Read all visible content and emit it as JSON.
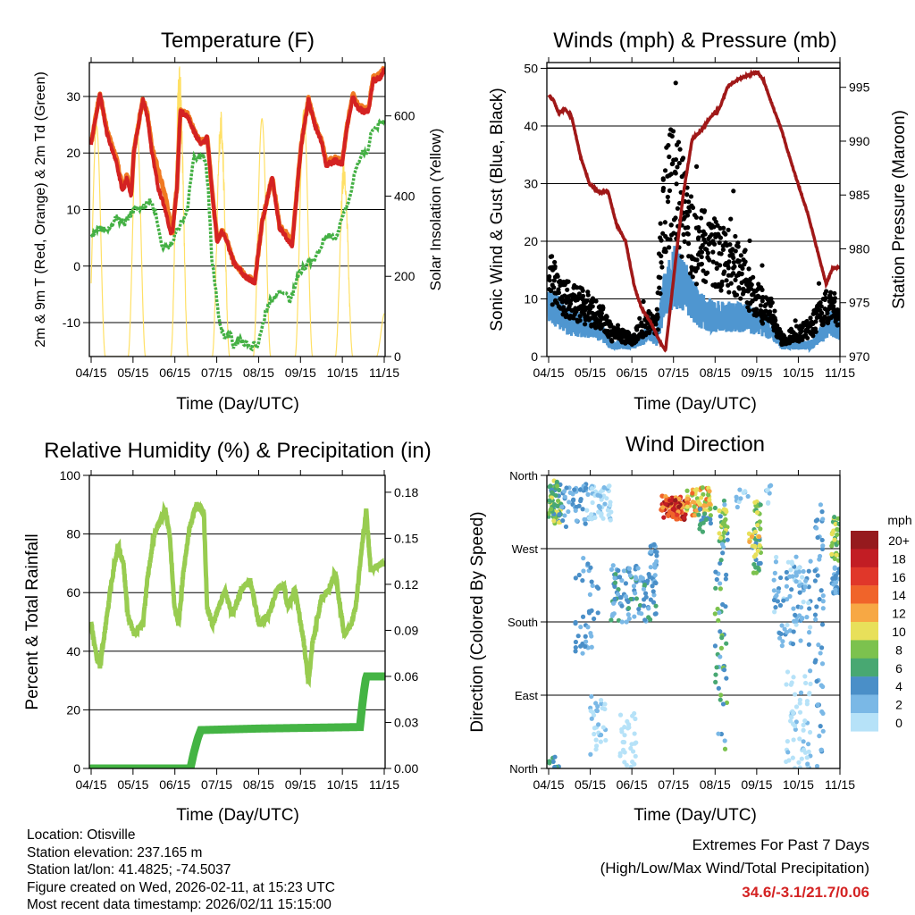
{
  "chart_data": [
    {
      "type": "line",
      "title": "Temperature (F)",
      "xlabel": "Time (Day/UTC)",
      "ylabel": "2m & 9m T (Red, Orange) & 2m Td (Green)",
      "ylabel_right": "Solar Insolation (Yellow)",
      "xlim": [
        0,
        7
      ],
      "x_tick_labels": [
        "04/15",
        "05/15",
        "06/15",
        "07/15",
        "08/15",
        "09/15",
        "10/15",
        "11/15"
      ],
      "ylim": [
        -16,
        36
      ],
      "y_ticks": [
        -10,
        0,
        10,
        20,
        30
      ],
      "y_tick_labels": [
        "-10",
        "0",
        "10",
        "20",
        "30"
      ],
      "ylim_right": [
        0,
        733
      ],
      "y_right_ticks": [
        0,
        200,
        400,
        600
      ],
      "y_right_tick_labels": [
        "0",
        "200",
        "400",
        "600"
      ],
      "grid": true,
      "series": [
        {
          "name": "9m T",
          "color": "#f07a22",
          "x": [
            0,
            0.21,
            0.38,
            0.6,
            0.75,
            0.85,
            0.96,
            1.02,
            1.2,
            1.24,
            1.34,
            1.45,
            1.6,
            1.77,
            1.88,
            1.94,
            2.05,
            2.13,
            2.3,
            2.48,
            2.62,
            2.73,
            2.77,
            2.9,
            3.01,
            3.12,
            3.2,
            3.41,
            3.69,
            3.91,
            4.08,
            4.27,
            4.33,
            4.5,
            4.65,
            4.8,
            5.01,
            5.19,
            5.34,
            5.51,
            5.61,
            5.83,
            6.0,
            6.1,
            6.25,
            6.36,
            6.51,
            6.62,
            6.74,
            6.89,
            7.0
          ],
          "y": [
            21.8,
            30.6,
            24.0,
            19.2,
            14.0,
            16.0,
            12.8,
            20.4,
            28.2,
            29.5,
            27.0,
            21.0,
            17.0,
            12.5,
            8.0,
            6.2,
            14.0,
            27.4,
            26.8,
            23.6,
            22.0,
            22.3,
            23.2,
            12.5,
            4.6,
            6.2,
            5.4,
            0.6,
            -1.8,
            -2.7,
            7.8,
            14.0,
            15.6,
            7.0,
            5.8,
            4.0,
            21.2,
            29.5,
            25.3,
            22.2,
            18.5,
            19.0,
            18.5,
            24.4,
            30.3,
            28.6,
            27.8,
            27.6,
            33.4,
            33.8,
            35.0
          ]
        },
        {
          "name": "2m T",
          "color": "#d42222",
          "x": [
            0,
            0.21,
            0.38,
            0.6,
            0.75,
            0.85,
            0.96,
            1.02,
            1.2,
            1.24,
            1.34,
            1.45,
            1.6,
            1.77,
            1.88,
            1.94,
            2.05,
            2.13,
            2.3,
            2.48,
            2.62,
            2.73,
            2.77,
            2.9,
            3.01,
            3.12,
            3.2,
            3.41,
            3.69,
            3.91,
            4.08,
            4.27,
            4.33,
            4.5,
            4.65,
            4.8,
            5.01,
            5.19,
            5.34,
            5.51,
            5.61,
            5.83,
            6.0,
            6.1,
            6.25,
            6.36,
            6.51,
            6.62,
            6.74,
            6.89,
            7.0
          ],
          "y": [
            21.5,
            30.5,
            23.4,
            18.6,
            13.1,
            15.5,
            12.3,
            20.2,
            28.1,
            29.4,
            26.5,
            20.2,
            13.9,
            10.0,
            6.0,
            5.7,
            13.9,
            27.3,
            26.5,
            23.4,
            21.8,
            22.1,
            23.1,
            12.3,
            4.4,
            6.0,
            5.2,
            0.5,
            -1.9,
            -2.8,
            7.6,
            13.9,
            15.5,
            6.8,
            5.2,
            3.6,
            21.0,
            29.4,
            25.0,
            21.8,
            17.9,
            18.6,
            18.2,
            24.2,
            30.0,
            28.1,
            27.3,
            27.3,
            32.9,
            33.2,
            34.6
          ]
        },
        {
          "name": "2m Td",
          "color": "#44b044",
          "x": [
            0,
            0.17,
            0.38,
            0.6,
            0.81,
            1.02,
            1.24,
            1.41,
            1.56,
            1.71,
            1.88,
            2.09,
            2.3,
            2.45,
            2.62,
            2.73,
            2.8,
            2.88,
            2.99,
            3.07,
            3.2,
            3.33,
            3.41,
            3.54,
            3.76,
            3.97,
            4.05,
            4.23,
            4.44,
            4.61,
            4.76,
            4.97,
            5.19,
            5.4,
            5.61,
            5.83,
            5.93,
            6.15,
            6.32,
            6.47,
            6.57,
            6.68,
            6.89,
            7.0
          ],
          "y": [
            5.2,
            6.8,
            6.3,
            8.4,
            7.6,
            10,
            10.4,
            11.5,
            9,
            2.8,
            3.6,
            6.8,
            10,
            19.4,
            19.4,
            19.2,
            13.1,
            1.3,
            -5,
            -10.6,
            -12.6,
            -12.3,
            -14.2,
            -13,
            -14.2,
            -14,
            -11.4,
            -6.6,
            -5.1,
            -4.3,
            -6.3,
            -1.1,
            0.5,
            2.1,
            5.2,
            5.2,
            6.8,
            11.5,
            17,
            20.2,
            19.4,
            23.4,
            25,
            26.2
          ]
        },
        {
          "name": "Solar Insolation",
          "color": "#ffe066",
          "axis": "right",
          "peak_days": [
            0.13,
            1.09,
            2.11,
            3.1,
            4.08,
            5.08,
            6.04,
            7.02
          ],
          "peak_values": [
            575,
            580,
            730,
            613,
            593,
            615,
            498,
            110
          ]
        }
      ]
    },
    {
      "type": "scatter",
      "title": "Winds (mph) & Pressure (mb)",
      "xlabel": "Time (Day/UTC)",
      "ylabel": "Sonic Wind & Gust (Blue, Black)",
      "ylabel_right": "Station Pressure (Maroon)",
      "xlim": [
        0,
        7
      ],
      "x_tick_labels": [
        "04/15",
        "05/15",
        "06/15",
        "07/15",
        "08/15",
        "09/15",
        "10/15",
        "11/15"
      ],
      "ylim": [
        0,
        51
      ],
      "y_ticks": [
        0,
        10,
        20,
        30,
        40,
        50
      ],
      "y_tick_labels": [
        "0",
        "10",
        "20",
        "30",
        "40",
        "50"
      ],
      "ylim_right": [
        970,
        997.3
      ],
      "y_right_ticks": [
        970,
        975,
        980,
        985,
        990,
        995
      ],
      "y_right_tick_labels": [
        "970",
        "975",
        "980",
        "985",
        "990",
        "995"
      ],
      "grid": true,
      "series": [
        {
          "name": "Sonic Wind",
          "color": "#4f96d0",
          "x": [
            0,
            0.5,
            1.0,
            1.3,
            1.5,
            2.0,
            2.4,
            2.6,
            2.75,
            3.0,
            3.3,
            3.6,
            4.0,
            4.5,
            5.0,
            5.3,
            5.6,
            6.0,
            6.3,
            6.6,
            6.8,
            7.0
          ],
          "y": [
            9,
            6,
            5,
            4,
            2,
            2,
            4,
            3,
            10,
            14,
            12,
            8,
            7,
            7,
            6,
            5,
            2,
            2,
            2,
            4,
            6,
            4
          ]
        },
        {
          "name": "Gust",
          "color": "#000000",
          "x": [
            0,
            0.2,
            0.5,
            1.0,
            1.3,
            1.5,
            2.0,
            2.4,
            2.6,
            2.75,
            3.0,
            3.2,
            3.5,
            3.8,
            4.2,
            4.6,
            5.0,
            5.4,
            5.6,
            6.0,
            6.3,
            6.6,
            6.8,
            7.0
          ],
          "y": [
            15,
            11,
            10,
            8,
            7,
            4,
            3,
            6,
            5,
            26,
            31,
            26,
            19,
            19,
            17,
            15,
            10,
            7,
            3,
            4,
            5,
            8,
            9,
            6
          ]
        },
        {
          "name": "Station Pressure",
          "color": "#a01818",
          "axis": "right",
          "x": [
            0,
            0.13,
            0.24,
            0.39,
            0.56,
            0.77,
            0.99,
            1.24,
            1.42,
            1.63,
            1.85,
            2.06,
            2.23,
            2.45,
            2.7,
            2.81,
            3.03,
            3.24,
            3.45,
            3.67,
            3.88,
            4.1,
            4.31,
            4.53,
            4.85,
            5.02,
            5.17,
            5.32,
            5.6,
            5.82,
            6.03,
            6.24,
            6.46,
            6.67,
            6.82,
            7.0
          ],
          "y": [
            994.3,
            993.7,
            992.6,
            993,
            992.2,
            988.5,
            986,
            985.2,
            985.4,
            982.3,
            980.7,
            976.5,
            974.5,
            973.2,
            971.2,
            970.6,
            978.2,
            985.2,
            990.2,
            991,
            992.2,
            993,
            995.1,
            995.7,
            996.2,
            996.4,
            995.6,
            993.9,
            991,
            988.1,
            985.6,
            983.1,
            979.8,
            976.7,
            978.2,
            978.3
          ]
        }
      ]
    },
    {
      "type": "line",
      "title": "Relative Humidity (%) & Precipitation (in)",
      "xlabel": "Time (Day/UTC)",
      "ylabel": "Percent & Total Rainfall",
      "xlim": [
        0,
        7
      ],
      "x_tick_labels": [
        "04/15",
        "05/15",
        "06/15",
        "07/15",
        "08/15",
        "09/15",
        "10/15",
        "11/15"
      ],
      "ylim": [
        0,
        100
      ],
      "y_ticks": [
        0,
        20,
        40,
        60,
        80,
        100
      ],
      "y_tick_labels": [
        "0",
        "20",
        "40",
        "60",
        "80",
        "100"
      ],
      "ylim_right": [
        0,
        0.191
      ],
      "y_right_ticks": [
        0,
        0.03,
        0.06,
        0.09,
        0.12,
        0.15,
        0.18
      ],
      "y_right_tick_labels": [
        "0.00",
        "0.03",
        "0.06",
        "0.09",
        "0.12",
        "0.15",
        "0.18"
      ],
      "grid": true,
      "series": [
        {
          "name": "Relative Humidity",
          "color": "#98cc50",
          "x": [
            0,
            0.13,
            0.21,
            0.34,
            0.49,
            0.64,
            0.77,
            0.88,
            1.02,
            1.24,
            1.34,
            1.49,
            1.66,
            1.77,
            1.88,
            1.99,
            2.09,
            2.2,
            2.35,
            2.52,
            2.69,
            2.77,
            2.9,
            3.05,
            3.2,
            3.37,
            3.58,
            3.8,
            4.01,
            4.23,
            4.44,
            4.61,
            4.69,
            4.87,
            5.08,
            5.19,
            5.29,
            5.5,
            5.68,
            5.83,
            6.04,
            6.21,
            6.32,
            6.47,
            6.57,
            6.68,
            6.79,
            7.0
          ],
          "y": [
            49.4,
            38,
            35,
            48,
            64,
            76,
            70,
            52,
            46,
            49,
            64,
            79,
            85,
            88,
            79,
            55,
            49,
            67,
            82,
            90,
            88,
            55,
            49,
            55,
            61,
            52,
            61,
            64,
            49,
            52,
            61,
            62.5,
            55,
            61,
            43,
            29,
            43,
            58,
            61,
            67,
            46,
            49,
            55,
            76,
            88,
            67,
            69,
            70
          ]
        },
        {
          "name": "Total Precipitation",
          "color": "#44b444",
          "axis": "right",
          "x": [
            0,
            2.37,
            2.45,
            2.55,
            2.62,
            4.0,
            6.42,
            6.47,
            6.52,
            6.57,
            7.0
          ],
          "y": [
            0,
            0,
            0.01,
            0.02,
            0.025,
            0.026,
            0.027,
            0.04,
            0.051,
            0.06,
            0.06
          ]
        }
      ]
    },
    {
      "type": "scatter",
      "title": "Wind Direction",
      "xlabel": "Time (Day/UTC)",
      "ylabel": "Direction (Colored By Speed)",
      "xlim": [
        0,
        7
      ],
      "x_tick_labels": [
        "04/15",
        "05/15",
        "06/15",
        "07/15",
        "08/15",
        "09/15",
        "10/15",
        "11/15"
      ],
      "ylim": [
        0,
        360
      ],
      "y_ticks": [
        0,
        90,
        180,
        270,
        360
      ],
      "y_tick_labels": [
        "North",
        "East",
        "South",
        "West",
        "North"
      ],
      "grid": true,
      "legend": {
        "title": "mph",
        "placement": "right",
        "labels": [
          "20+",
          "18",
          "16",
          "14",
          "12",
          "10",
          "8",
          "6",
          "4",
          "2",
          "0"
        ],
        "colors": [
          "#961a1e",
          "#c21d24",
          "#e0372a",
          "#f0642a",
          "#f7a844",
          "#e8e05a",
          "#7cc24e",
          "#48a872",
          "#4a8fc8",
          "#7ab8e6",
          "#b6e2f8"
        ]
      },
      "point_clusters_note": "day_min, day_max, deg_min, deg_max, speed_min, speed_max, count",
      "point_clusters": [
        [
          0.0,
          0.3,
          300,
          355,
          5,
          11,
          70
        ],
        [
          0.3,
          0.9,
          295,
          350,
          2,
          6,
          45
        ],
        [
          0.9,
          1.5,
          305,
          350,
          0,
          3,
          55
        ],
        [
          0.6,
          1.2,
          140,
          260,
          2,
          6,
          40
        ],
        [
          1.0,
          1.4,
          10,
          90,
          0,
          3,
          30
        ],
        [
          0.0,
          0.3,
          0,
          15,
          4,
          8,
          8
        ],
        [
          1.5,
          2.6,
          180,
          250,
          2,
          7,
          110
        ],
        [
          1.7,
          2.1,
          0,
          70,
          0,
          2,
          30
        ],
        [
          2.4,
          2.6,
          240,
          280,
          3,
          5,
          15
        ],
        [
          2.7,
          3.3,
          305,
          335,
          12,
          21,
          110
        ],
        [
          3.3,
          3.9,
          310,
          345,
          8,
          16,
          70
        ],
        [
          3.6,
          3.9,
          290,
          320,
          4,
          8,
          15
        ],
        [
          4.0,
          4.3,
          20,
          330,
          3,
          9,
          60
        ],
        [
          4.1,
          4.3,
          280,
          320,
          8,
          12,
          20
        ],
        [
          4.5,
          4.8,
          320,
          350,
          1,
          4,
          10
        ],
        [
          4.9,
          5.1,
          240,
          330,
          4,
          11,
          45
        ],
        [
          4.8,
          5.1,
          270,
          300,
          10,
          13,
          12
        ],
        [
          5.4,
          6.3,
          150,
          260,
          1,
          5,
          90
        ],
        [
          5.7,
          6.3,
          0,
          120,
          0,
          3,
          60
        ],
        [
          5.2,
          5.4,
          320,
          350,
          0,
          3,
          8
        ],
        [
          6.4,
          6.6,
          0,
          340,
          2,
          6,
          50
        ],
        [
          6.8,
          7.0,
          255,
          310,
          6,
          11,
          30
        ],
        [
          6.8,
          7.0,
          215,
          250,
          3,
          5,
          25
        ]
      ]
    }
  ],
  "footer": {
    "location": "Location: Otisville",
    "elevation": "Station elevation: 237.165 m",
    "latlon": "Station lat/lon: 41.4825; -74.5037",
    "created": "Figure created on Wed, 2026-02-11, at 15:23 UTC",
    "recent": "Most recent data timestamp: 2026/02/11 15:15:00"
  },
  "extremes": {
    "title": "Extremes For Past 7 Days",
    "subtitle": "(High/Low/Max Wind/Total Precipitation)",
    "values": "34.6/-3.1/21.7/0.06",
    "color": "#d42222"
  }
}
